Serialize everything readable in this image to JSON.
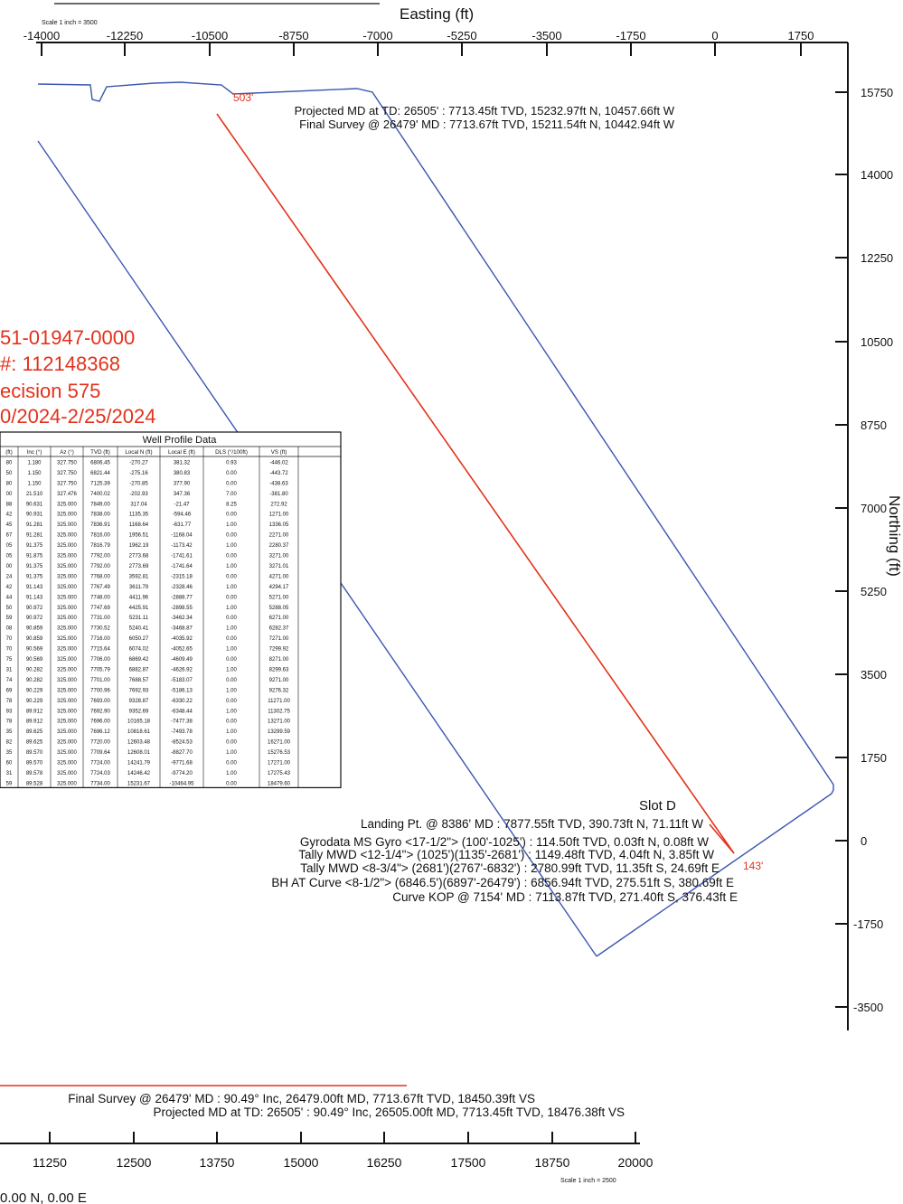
{
  "plan_view": {
    "easting_title": "Easting (ft)",
    "northing_title": "Northing (ft)",
    "scale_label": "Scale 1 inch = 3500",
    "x_ticks": [
      "-14000",
      "-12250",
      "-10500",
      "-8750",
      "-7000",
      "-5250",
      "-3500",
      "-1750",
      "0",
      "1750"
    ],
    "y_ticks": [
      "15750",
      "14000",
      "12250",
      "10500",
      "8750",
      "7000",
      "5250",
      "3500",
      "1750",
      "0",
      "-1750",
      "-3500"
    ],
    "endpoint_label": "503'",
    "start_label": "143'",
    "slot_label": "Slot D",
    "annotations": [
      "Projected MD at TD: 26505' : 7713.45ft TVD, 15232.97ft N, 10457.66ft W",
      "Final Survey @ 26479' MD : 7713.67ft TVD, 15211.54ft N, 10442.94ft W",
      "Landing Pt. @ 8386' MD : 7877.55ft TVD, 390.73ft N, 71.11ft W",
      "Gyrodata MS Gyro <17-1/2\"> (100'-1025') : 114.50ft TVD, 0.03ft N, 0.08ft W",
      "Tally MWD <12-1/4\"> (1025')(1135'-2681') : 1149.48ft TVD, 4.04ft N, 3.85ft W",
      "Tally MWD <8-3/4\"> (2681')(2767'-6832') : 2780.99ft TVD, 11.35ft S, 24.69ft E",
      "BH AT Curve <8-1/2\"> (6846.5')(6897'-26479') : 6856.94ft TVD, 275.51ft S, 380.69ft E",
      "Curve KOP @ 7154' MD : 7113.87ft TVD, 271.40ft S, 376.43ft E"
    ],
    "permit_lines": [
      "51-01947-0000",
      "#: 112148368",
      "ecision 575",
      "0/2024-2/25/2024"
    ],
    "colors": {
      "plan_line": "#e3321c",
      "boundary": "#3b57b0",
      "text_red": "#e3321c"
    }
  },
  "well_profile": {
    "title": "Well Profile Data",
    "headers": [
      "(ft)",
      "Inc (°)",
      "Az (°)",
      "TVD (ft)",
      "Local N (ft)",
      "Local E (ft)",
      "DLS (°/100ft)",
      "VS (ft)"
    ],
    "rows": [
      [
        "80",
        "1.180",
        "327.750",
        "6806.45",
        "-270.27",
        "381.32",
        "0.93",
        "-446.02"
      ],
      [
        "50",
        "1.150",
        "327.750",
        "6821.44",
        "-275.16",
        "380.83",
        "0.00",
        "-443.72"
      ],
      [
        "80",
        "1.150",
        "327.750",
        "7125.39",
        "-270.85",
        "377.90",
        "0.00",
        "-438.63"
      ],
      [
        "00",
        "21.510",
        "327.476",
        "7400.02",
        "-202.93",
        "347.36",
        "7.00",
        "-381.80"
      ],
      [
        "88",
        "90.631",
        "325.000",
        "7849.00",
        "317.04",
        "-21.47",
        "8.25",
        "272.92"
      ],
      [
        "42",
        "90.931",
        "325.000",
        "7838.00",
        "1135.35",
        "-594.46",
        "0.00",
        "1271.00"
      ],
      [
        "45",
        "91.281",
        "325.000",
        "7836.91",
        "1168.64",
        "-631.77",
        "1.00",
        "1336.05"
      ],
      [
        "67",
        "91.281",
        "325.000",
        "7816.00",
        "1956.51",
        "-1168.04",
        "0.00",
        "2271.00"
      ],
      [
        "05",
        "91.375",
        "325.000",
        "7816.79",
        "1962.19",
        "-1173.42",
        "1.00",
        "2280.37"
      ],
      [
        "05",
        "91.875",
        "325.000",
        "7792.00",
        "2773.68",
        "-1741.61",
        "0.00",
        "3271.00"
      ],
      [
        "00",
        "91.375",
        "325.000",
        "7792.00",
        "2773.69",
        "-1741.64",
        "1.00",
        "3271.01"
      ],
      [
        "24",
        "91.375",
        "325.000",
        "7768.00",
        "3592.81",
        "-2315.18",
        "0.00",
        "4271.00"
      ],
      [
        "42",
        "91.143",
        "325.000",
        "7767.49",
        "3611.79",
        "-2328.46",
        "1.00",
        "4294.17"
      ],
      [
        "44",
        "91.143",
        "325.000",
        "7748.00",
        "4411.96",
        "-2888.77",
        "0.00",
        "5271.00"
      ],
      [
        "50",
        "90.972",
        "325.000",
        "7747.69",
        "4425.91",
        "-2898.55",
        "1.00",
        "5288.05"
      ],
      [
        "59",
        "90.972",
        "325.000",
        "7731.00",
        "5231.11",
        "-3462.34",
        "0.00",
        "6271.00"
      ],
      [
        "08",
        "90.859",
        "325.000",
        "7730.52",
        "5240.41",
        "-3468.87",
        "1.00",
        "6282.37"
      ],
      [
        "70",
        "90.859",
        "325.000",
        "7716.00",
        "6050.27",
        "-4035.92",
        "0.00",
        "7271.00"
      ],
      [
        "70",
        "90.569",
        "325.000",
        "7715.64",
        "6074.02",
        "-4052.65",
        "1.00",
        "7299.92"
      ],
      [
        "75",
        "90.569",
        "325.000",
        "7706.00",
        "6869.42",
        "-4609.49",
        "0.00",
        "8271.00"
      ],
      [
        "31",
        "90.282",
        "325.000",
        "7705.79",
        "6882.87",
        "-4626.92",
        "1.00",
        "8299.63"
      ],
      [
        "74",
        "90.282",
        "325.000",
        "7701.00",
        "7688.57",
        "-5183.07",
        "0.00",
        "9271.00"
      ],
      [
        "69",
        "90.229",
        "325.000",
        "7700.96",
        "7692.93",
        "-5186.13",
        "1.00",
        "9276.32"
      ],
      [
        "78",
        "90.229",
        "325.000",
        "7693.00",
        "9328.87",
        "-6330.22",
        "0.00",
        "11271.00"
      ],
      [
        "93",
        "89.912",
        "325.000",
        "7692.90",
        "9352.69",
        "-6348.44",
        "1.00",
        "11302.75"
      ],
      [
        "78",
        "89.912",
        "325.000",
        "7696.00",
        "10165.18",
        "-7477.38",
        "0.00",
        "13271.00"
      ],
      [
        "35",
        "89.625",
        "325.000",
        "7696.12",
        "10818.61",
        "-7493.78",
        "1.00",
        "13299.59"
      ],
      [
        "82",
        "89.625",
        "325.000",
        "7720.00",
        "12603.48",
        "-8524.53",
        "0.00",
        "16271.00"
      ],
      [
        "35",
        "89.570",
        "325.000",
        "7709.64",
        "12608.01",
        "-8827.70",
        "1.00",
        "15276.53"
      ],
      [
        "60",
        "89.570",
        "325.000",
        "7724.00",
        "14241.79",
        "-9771.68",
        "0.00",
        "17271.00"
      ],
      [
        "31",
        "89.578",
        "325.000",
        "7724.03",
        "14246.42",
        "-9774.20",
        "1.00",
        "17275.43"
      ],
      [
        "59",
        "89.528",
        "325.000",
        "7734.00",
        "15231.67",
        "-10464.95",
        "0.00",
        "18479.60"
      ]
    ]
  },
  "section_view": {
    "x_ticks": [
      "11250",
      "12500",
      "13750",
      "15000",
      "16250",
      "17500",
      "18750",
      "20000"
    ],
    "scale_label": "Scale 1 inch = 2500",
    "annotations": [
      "Final Survey @ 26479' MD : 90.49° Inc, 26479.00ft MD, 7713.67ft TVD, 18450.39ft VS",
      "Projected MD at TD: 26505' : 90.49° Inc, 26505.00ft MD, 7713.45ft TVD, 18476.38ft VS"
    ],
    "origin_label": "0.00 N, 0.00 E"
  }
}
